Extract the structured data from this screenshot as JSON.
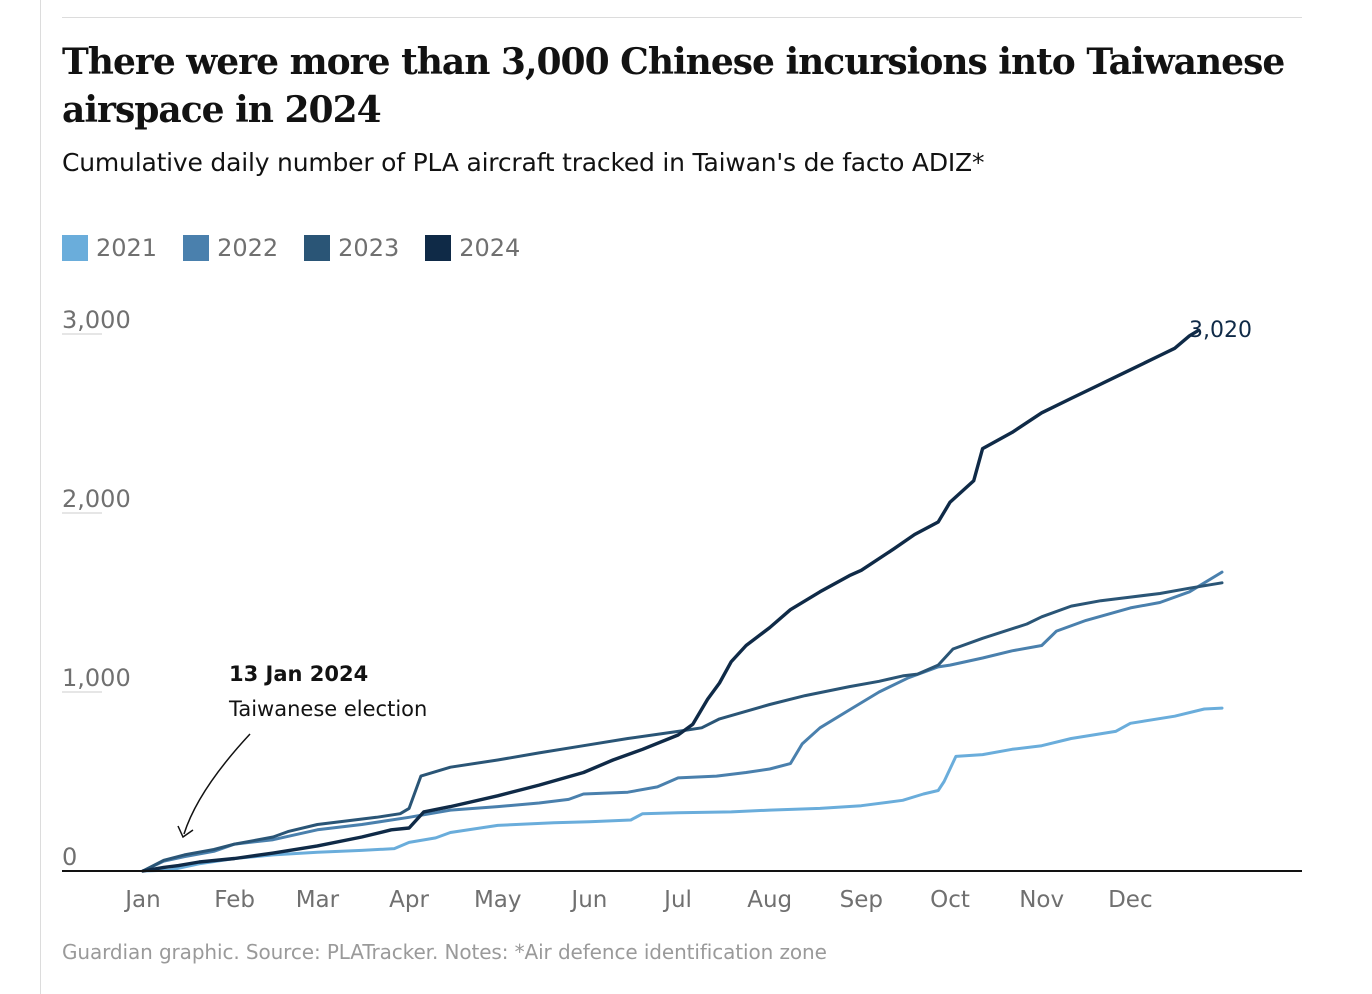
{
  "title": "There were more than 3,000 Chinese incursions into Taiwanese airspace in 2024",
  "subtitle": "Cumulative daily number of PLA aircraft tracked in Taiwan's de facto ADIZ*",
  "source": "Guardian graphic. Source: PLATracker. Notes: *Air defence identification zone",
  "annotation": {
    "date": "13 Jan 2024",
    "text": "Taiwanese election"
  },
  "end_label": "3,020",
  "colors": {
    "2021": "#6aaddb",
    "2022": "#4a80ad",
    "2023": "#2a5576",
    "2024": "#0f2a47"
  },
  "chart_data": {
    "type": "line",
    "title": "There were more than 3,000 Chinese incursions into Taiwanese airspace in 2024",
    "xlabel": "",
    "ylabel": "",
    "x_unit": "day of year",
    "xlim": [
      1,
      366
    ],
    "ylim": [
      0,
      3000
    ],
    "yticks": [
      0,
      1000,
      2000,
      3000
    ],
    "ytick_labels": [
      "0",
      "1,000",
      "2,000",
      "3,000"
    ],
    "month_labels": [
      "Jan",
      "Feb",
      "Mar",
      "Apr",
      "May",
      "Jun",
      "Jul",
      "Aug",
      "Sep",
      "Oct",
      "Nov",
      "Dec"
    ],
    "month_days": [
      1,
      32,
      60,
      91,
      121,
      152,
      182,
      213,
      244,
      274,
      305,
      335
    ],
    "legend": [
      "2021",
      "2022",
      "2023",
      "2024"
    ],
    "series": [
      {
        "name": "2021",
        "points": [
          [
            1,
            0
          ],
          [
            10,
            5
          ],
          [
            20,
            40
          ],
          [
            32,
            70
          ],
          [
            45,
            90
          ],
          [
            60,
            105
          ],
          [
            75,
            115
          ],
          [
            86,
            125
          ],
          [
            91,
            160
          ],
          [
            100,
            185
          ],
          [
            105,
            215
          ],
          [
            121,
            255
          ],
          [
            140,
            270
          ],
          [
            152,
            275
          ],
          [
            166,
            285
          ],
          [
            170,
            320
          ],
          [
            182,
            325
          ],
          [
            200,
            330
          ],
          [
            213,
            340
          ],
          [
            230,
            350
          ],
          [
            244,
            365
          ],
          [
            258,
            395
          ],
          [
            265,
            430
          ],
          [
            270,
            450
          ],
          [
            272,
            500
          ],
          [
            276,
            640
          ],
          [
            285,
            650
          ],
          [
            295,
            680
          ],
          [
            305,
            700
          ],
          [
            315,
            740
          ],
          [
            330,
            780
          ],
          [
            335,
            825
          ],
          [
            350,
            865
          ],
          [
            360,
            905
          ],
          [
            366,
            910
          ]
        ]
      },
      {
        "name": "2022",
        "points": [
          [
            1,
            0
          ],
          [
            8,
            55
          ],
          [
            15,
            80
          ],
          [
            25,
            110
          ],
          [
            32,
            150
          ],
          [
            45,
            175
          ],
          [
            60,
            230
          ],
          [
            75,
            260
          ],
          [
            91,
            300
          ],
          [
            105,
            340
          ],
          [
            121,
            360
          ],
          [
            135,
            380
          ],
          [
            145,
            400
          ],
          [
            150,
            430
          ],
          [
            165,
            440
          ],
          [
            175,
            470
          ],
          [
            182,
            520
          ],
          [
            195,
            530
          ],
          [
            205,
            550
          ],
          [
            213,
            570
          ],
          [
            220,
            600
          ],
          [
            224,
            710
          ],
          [
            230,
            800
          ],
          [
            240,
            900
          ],
          [
            250,
            1000
          ],
          [
            260,
            1080
          ],
          [
            270,
            1140
          ],
          [
            274,
            1150
          ],
          [
            285,
            1190
          ],
          [
            295,
            1230
          ],
          [
            305,
            1260
          ],
          [
            310,
            1340
          ],
          [
            320,
            1400
          ],
          [
            335,
            1470
          ],
          [
            345,
            1500
          ],
          [
            355,
            1560
          ],
          [
            366,
            1670
          ]
        ]
      },
      {
        "name": "2023",
        "points": [
          [
            1,
            0
          ],
          [
            8,
            60
          ],
          [
            15,
            90
          ],
          [
            25,
            120
          ],
          [
            32,
            150
          ],
          [
            45,
            190
          ],
          [
            50,
            220
          ],
          [
            60,
            260
          ],
          [
            70,
            280
          ],
          [
            80,
            300
          ],
          [
            88,
            320
          ],
          [
            91,
            350
          ],
          [
            95,
            530
          ],
          [
            105,
            580
          ],
          [
            121,
            620
          ],
          [
            135,
            660
          ],
          [
            150,
            700
          ],
          [
            165,
            740
          ],
          [
            182,
            780
          ],
          [
            190,
            800
          ],
          [
            196,
            850
          ],
          [
            213,
            930
          ],
          [
            225,
            980
          ],
          [
            240,
            1030
          ],
          [
            250,
            1060
          ],
          [
            258,
            1090
          ],
          [
            263,
            1100
          ],
          [
            270,
            1150
          ],
          [
            275,
            1240
          ],
          [
            285,
            1300
          ],
          [
            300,
            1380
          ],
          [
            305,
            1420
          ],
          [
            315,
            1480
          ],
          [
            325,
            1510
          ],
          [
            335,
            1530
          ],
          [
            345,
            1550
          ],
          [
            355,
            1580
          ],
          [
            366,
            1610
          ]
        ]
      },
      {
        "name": "2024",
        "points": [
          [
            1,
            0
          ],
          [
            8,
            20
          ],
          [
            13,
            30
          ],
          [
            20,
            50
          ],
          [
            32,
            70
          ],
          [
            45,
            100
          ],
          [
            60,
            140
          ],
          [
            75,
            190
          ],
          [
            85,
            230
          ],
          [
            91,
            240
          ],
          [
            96,
            330
          ],
          [
            105,
            360
          ],
          [
            121,
            420
          ],
          [
            135,
            480
          ],
          [
            150,
            550
          ],
          [
            160,
            620
          ],
          [
            170,
            680
          ],
          [
            182,
            760
          ],
          [
            187,
            820
          ],
          [
            192,
            960
          ],
          [
            196,
            1050
          ],
          [
            200,
            1170
          ],
          [
            205,
            1260
          ],
          [
            213,
            1360
          ],
          [
            220,
            1460
          ],
          [
            230,
            1560
          ],
          [
            240,
            1650
          ],
          [
            244,
            1680
          ],
          [
            255,
            1800
          ],
          [
            262,
            1880
          ],
          [
            270,
            1950
          ],
          [
            274,
            2060
          ],
          [
            282,
            2180
          ],
          [
            285,
            2360
          ],
          [
            295,
            2450
          ],
          [
            305,
            2560
          ],
          [
            315,
            2640
          ],
          [
            325,
            2720
          ],
          [
            335,
            2800
          ],
          [
            345,
            2880
          ],
          [
            350,
            2920
          ],
          [
            355,
            2990
          ],
          [
            358,
            3020
          ]
        ]
      }
    ]
  }
}
